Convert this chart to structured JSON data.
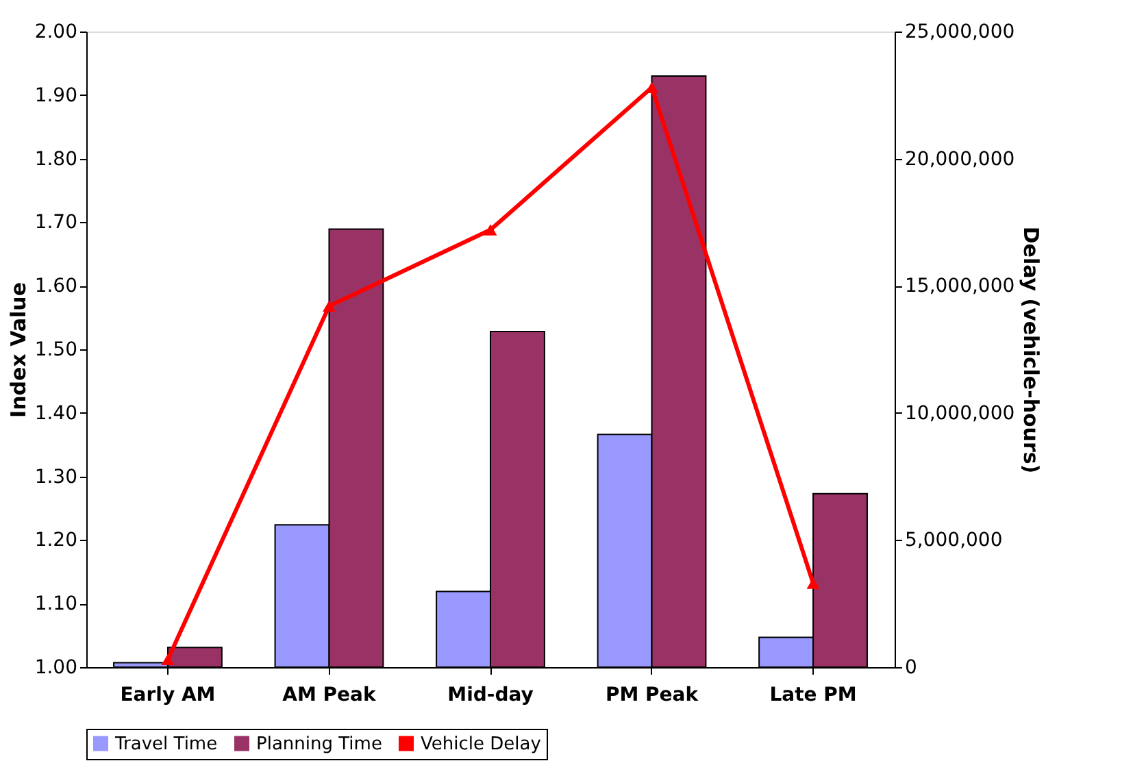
{
  "chart_data": {
    "type": "bar",
    "categories": [
      "Early AM",
      "AM Peak",
      "Mid-day",
      "PM Peak",
      "Late PM"
    ],
    "ylabel": "Index Value",
    "y2label": "Delay (vehicle-hours)",
    "ylim": [
      1,
      2
    ],
    "yticks": [
      {
        "value": 1,
        "label": "1.00"
      },
      {
        "value": 1.1,
        "label": "1.10"
      },
      {
        "value": 1.2,
        "label": "1.20"
      },
      {
        "value": 1.3,
        "label": "1.30"
      },
      {
        "value": 1.4,
        "label": "1.40"
      },
      {
        "value": 1.5,
        "label": "1.50"
      },
      {
        "value": 1.6,
        "label": "1.60"
      },
      {
        "value": 1.7,
        "label": "1.70"
      },
      {
        "value": 1.8,
        "label": "1.80"
      },
      {
        "value": 1.9,
        "label": "1.90"
      },
      {
        "value": 2,
        "label": "2.00"
      }
    ],
    "y2lim": [
      0,
      25000000
    ],
    "y2ticks": [
      0,
      {
        "value": 5000000,
        "label": "5,000,000"
      },
      {
        "value": 10000000,
        "label": "10,000,000"
      },
      {
        "value": 15000000,
        "label": "15,000,000"
      },
      {
        "value": 20000000,
        "label": "20,000,000"
      },
      {
        "value": 25000000,
        "label": "25,000,000"
      }
    ],
    "legend": "bottom",
    "grid": false,
    "series": [
      {
        "name": "Travel Time",
        "color": "#9999ff",
        "values": [
          1.007,
          1.224,
          1.119,
          1.366,
          1.047
        ]
      },
      {
        "name": "Planning Time",
        "color": "#993366",
        "values": [
          1.031,
          1.689,
          1.528,
          1.93,
          1.273
        ]
      },
      {
        "name": "Vehicle Delay",
        "color": "#ff0000",
        "type": "line",
        "axis": "y2",
        "marker": "triangle",
        "line_style": "solid",
        "values": [
          300000,
          14200000,
          17200000,
          22800000,
          3300000
        ]
      }
    ]
  }
}
